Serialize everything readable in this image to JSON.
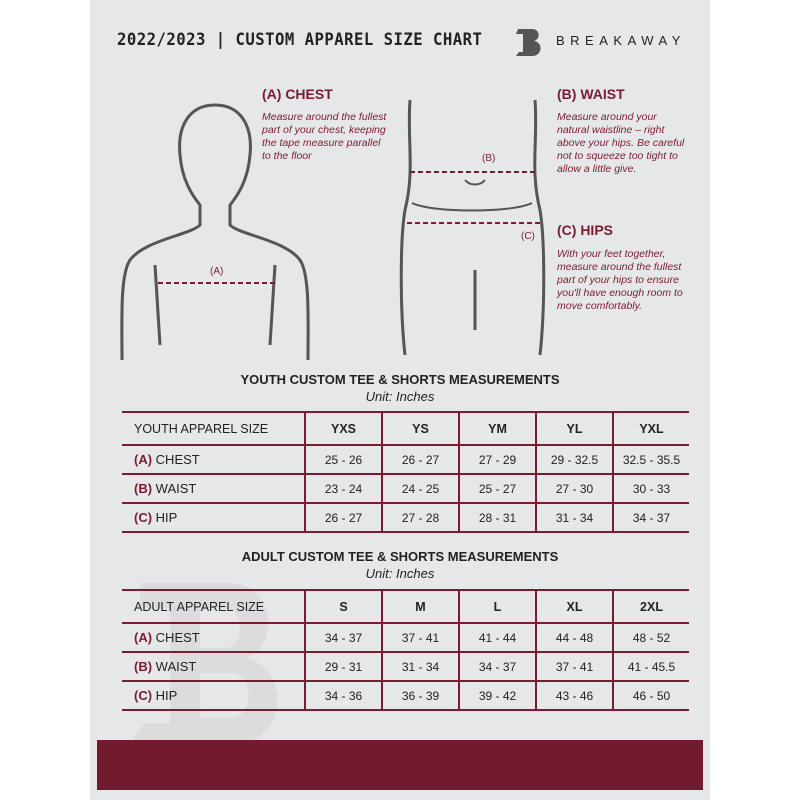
{
  "header": {
    "title": "2022/2023 | CUSTOM APPAREL SIZE CHART",
    "brand": "BREAKAWAY"
  },
  "chest": {
    "heading": "(A) CHEST",
    "text": "Measure around the fullest part of your chest, keeping the tape measure parallel to the floor",
    "marker": "(A)"
  },
  "waist": {
    "heading": "(B) WAIST",
    "text": "Measure around your natural waistline – right above your hips. Be careful not to squeeze too tight to allow a little give.",
    "marker": "(B)"
  },
  "hips": {
    "heading": "(C) HIPS",
    "text": "With your feet together, measure around the fullest part of your hips to ensure you'll have enough room to move comfortably.",
    "marker": "(C)"
  },
  "youth": {
    "title": "YOUTH CUSTOM TEE & SHORTS MEASUREMENTS",
    "unit": "Unit: Inches",
    "label": "YOUTH APPAREL SIZE",
    "sizes": [
      "YXS",
      "YS",
      "YM",
      "YL",
      "YXL"
    ],
    "rows": [
      {
        "tag": "(A)",
        "name": "CHEST",
        "values": [
          "25 - 26",
          "26 - 27",
          "27 - 29",
          "29 - 32.5",
          "32.5 - 35.5"
        ]
      },
      {
        "tag": "(B)",
        "name": "WAIST",
        "values": [
          "23 - 24",
          "24 - 25",
          "25 - 27",
          "27 - 30",
          "30 - 33"
        ]
      },
      {
        "tag": "(C)",
        "name": "HIP",
        "values": [
          "26 - 27",
          "27 - 28",
          "28 - 31",
          "31 - 34",
          "34 - 37"
        ]
      }
    ]
  },
  "adult": {
    "title": "ADULT CUSTOM TEE & SHORTS MEASUREMENTS",
    "unit": "Unit: Inches",
    "label": "ADULT APPAREL SIZE",
    "sizes": [
      "S",
      "M",
      "L",
      "XL",
      "2XL"
    ],
    "rows": [
      {
        "tag": "(A)",
        "name": "CHEST",
        "values": [
          "34 - 37",
          "37 - 41",
          "41 - 44",
          "44 - 48",
          "48 - 52"
        ]
      },
      {
        "tag": "(B)",
        "name": "WAIST",
        "values": [
          "29 - 31",
          "31 - 34",
          "34 - 37",
          "37 - 41",
          "41 - 45.5"
        ]
      },
      {
        "tag": "(C)",
        "name": "HIP",
        "values": [
          "34 - 36",
          "36 - 39",
          "39 - 42",
          "43 - 46",
          "46 - 50"
        ]
      }
    ]
  },
  "colors": {
    "accent": "#7a1c30",
    "band": "#721b30",
    "panel": "#e6e7e8"
  }
}
